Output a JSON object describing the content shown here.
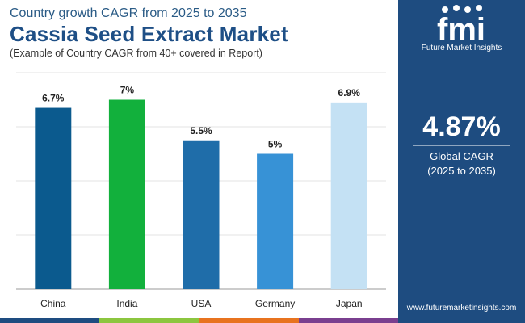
{
  "header": {
    "kicker": "Country growth CAGR from 2025 to 2035",
    "title": "Cassia Seed Extract Market",
    "note": "(Example of Country CAGR from 40+ covered in Report)"
  },
  "chart_data": {
    "type": "bar",
    "title": "Cassia Seed Extract Market",
    "categories": [
      "China",
      "India",
      "USA",
      "Germany",
      "Japan"
    ],
    "values": [
      6.7,
      7,
      5.5,
      5,
      6.9
    ],
    "value_labels": [
      "6.7%",
      "7%",
      "5.5%",
      "5%",
      "6.9%"
    ],
    "colors": [
      "#0b5a8e",
      "#12b03c",
      "#1f6da9",
      "#3792d6",
      "#c4e1f4"
    ],
    "xlabel": "",
    "ylabel": "",
    "ylim": [
      0,
      8
    ],
    "grid": true
  },
  "side_panel": {
    "brand_mark": "fmi",
    "brand_name": "Future Market Insights",
    "cagr_value": "4.87%",
    "cagr_label": "Global CAGR",
    "cagr_period": "(2025 to 2035)",
    "website": "www.futuremarketinsights.com",
    "panel_color": "#1e4c80"
  },
  "bottom_bar_colors": [
    "#1e4c80",
    "#8cc63f",
    "#e8731f",
    "#7a3f8f"
  ]
}
